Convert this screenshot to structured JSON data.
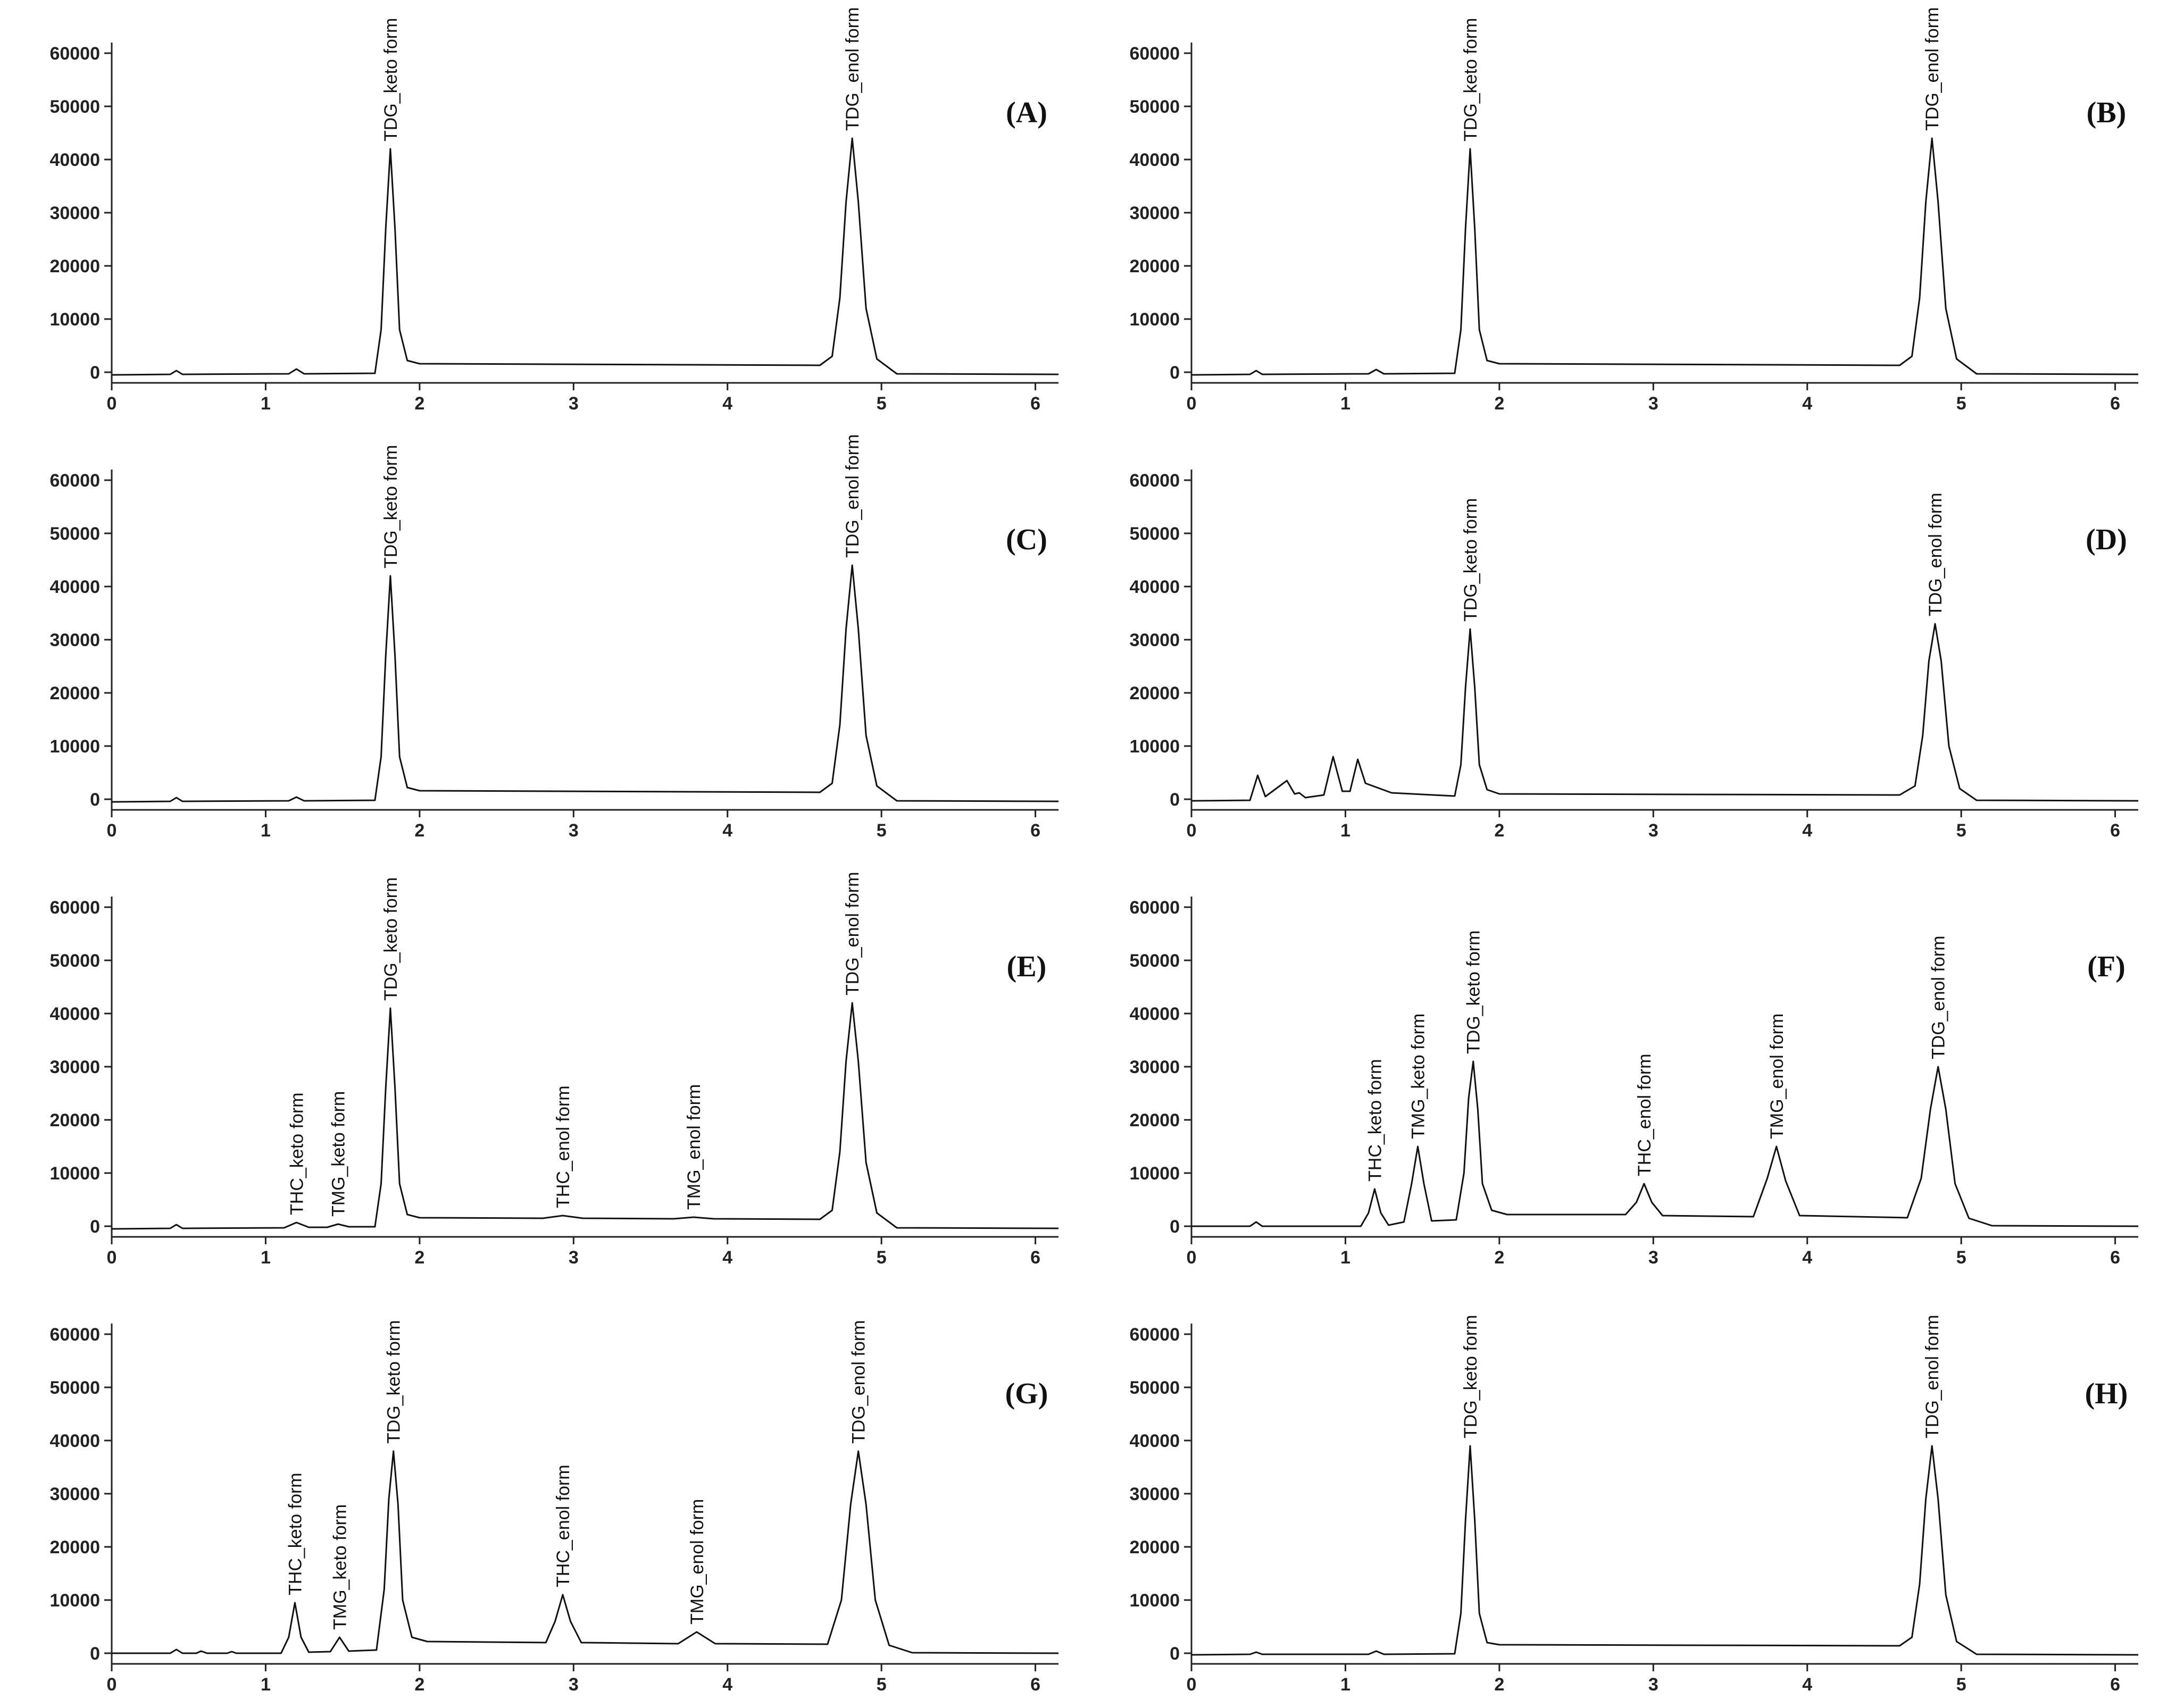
{
  "chart_data": [
    {
      "type": "line",
      "label": "(A)",
      "color": "#111111",
      "xlim": [
        0,
        6.15
      ],
      "ylim": [
        -2000,
        62000
      ],
      "xticks": [
        0,
        1,
        2,
        3,
        4,
        5,
        6
      ],
      "yticks": [
        0,
        10000,
        20000,
        30000,
        40000,
        50000,
        60000
      ],
      "x": [
        0,
        0.38,
        0.42,
        0.46,
        1.15,
        1.2,
        1.25,
        1.71,
        1.75,
        1.78,
        1.81,
        1.84,
        1.87,
        1.92,
        2.0,
        4.6,
        4.68,
        4.73,
        4.77,
        4.81,
        4.85,
        4.9,
        4.97,
        5.1,
        6.15
      ],
      "values": [
        -500,
        -400,
        300,
        -400,
        -300,
        600,
        -300,
        -200,
        8000,
        27000,
        42000,
        27000,
        8000,
        2200,
        1600,
        1300,
        3000,
        14000,
        32000,
        44000,
        32000,
        12000,
        2500,
        -300,
        -400
      ],
      "peaks": [
        {
          "label": "TDG_keto form",
          "x": 1.81,
          "y": 42000
        },
        {
          "label": "TDG_enol form",
          "x": 4.81,
          "y": 44000
        }
      ]
    },
    {
      "type": "line",
      "label": "(B)",
      "color": "#111111",
      "xlim": [
        0,
        6.15
      ],
      "ylim": [
        -2000,
        62000
      ],
      "xticks": [
        0,
        1,
        2,
        3,
        4,
        5,
        6
      ],
      "yticks": [
        0,
        10000,
        20000,
        30000,
        40000,
        50000,
        60000
      ],
      "x": [
        0,
        0.38,
        0.42,
        0.46,
        1.15,
        1.2,
        1.25,
        1.71,
        1.75,
        1.78,
        1.81,
        1.84,
        1.87,
        1.92,
        2.0,
        4.6,
        4.68,
        4.73,
        4.77,
        4.81,
        4.85,
        4.9,
        4.97,
        5.1,
        6.15
      ],
      "values": [
        -500,
        -400,
        300,
        -400,
        -300,
        500,
        -300,
        -200,
        8000,
        27000,
        42000,
        27000,
        8000,
        2200,
        1600,
        1300,
        3000,
        14000,
        32000,
        44000,
        32000,
        12000,
        2500,
        -300,
        -400
      ],
      "peaks": [
        {
          "label": "TDG_keto form",
          "x": 1.81,
          "y": 42000
        },
        {
          "label": "TDG_enol form",
          "x": 4.81,
          "y": 44000
        }
      ]
    },
    {
      "type": "line",
      "label": "(C)",
      "color": "#111111",
      "xlim": [
        0,
        6.15
      ],
      "ylim": [
        -2000,
        62000
      ],
      "xticks": [
        0,
        1,
        2,
        3,
        4,
        5,
        6
      ],
      "yticks": [
        0,
        10000,
        20000,
        30000,
        40000,
        50000,
        60000
      ],
      "x": [
        0,
        0.38,
        0.42,
        0.46,
        1.15,
        1.2,
        1.25,
        1.71,
        1.75,
        1.78,
        1.81,
        1.84,
        1.87,
        1.92,
        2.0,
        4.6,
        4.68,
        4.73,
        4.77,
        4.81,
        4.85,
        4.9,
        4.97,
        5.1,
        6.15
      ],
      "values": [
        -500,
        -400,
        300,
        -400,
        -300,
        400,
        -300,
        -200,
        8000,
        27000,
        42000,
        27000,
        8000,
        2200,
        1600,
        1300,
        3000,
        14000,
        32000,
        44000,
        32000,
        12000,
        2500,
        -300,
        -400
      ],
      "peaks": [
        {
          "label": "TDG_keto form",
          "x": 1.81,
          "y": 42000
        },
        {
          "label": "TDG_enol form",
          "x": 4.81,
          "y": 44000
        }
      ]
    },
    {
      "type": "line",
      "label": "(D)",
      "color": "#111111",
      "xlim": [
        0,
        6.15
      ],
      "ylim": [
        -2000,
        62000
      ],
      "xticks": [
        0,
        1,
        2,
        3,
        4,
        5,
        6
      ],
      "yticks": [
        0,
        10000,
        20000,
        30000,
        40000,
        50000,
        60000
      ],
      "x": [
        0,
        0.38,
        0.43,
        0.48,
        0.55,
        0.62,
        0.67,
        0.7,
        0.74,
        0.86,
        0.92,
        0.98,
        1.03,
        1.08,
        1.13,
        1.3,
        1.71,
        1.75,
        1.78,
        1.81,
        1.84,
        1.87,
        1.92,
        2.0,
        4.6,
        4.7,
        4.75,
        4.79,
        4.83,
        4.87,
        4.92,
        4.99,
        5.1,
        6.15
      ],
      "values": [
        -300,
        -200,
        4500,
        500,
        2000,
        3500,
        1000,
        1200,
        300,
        800,
        8000,
        1500,
        1500,
        7500,
        3000,
        1200,
        600,
        6500,
        21000,
        32000,
        21000,
        6500,
        1800,
        1000,
        800,
        2500,
        12000,
        26000,
        33000,
        26000,
        10000,
        2000,
        -200,
        -300
      ],
      "peaks": [
        {
          "label": "TDG_keto form",
          "x": 1.81,
          "y": 32000
        },
        {
          "label": "TDG_enol form",
          "x": 4.83,
          "y": 33000
        }
      ]
    },
    {
      "type": "line",
      "label": "(E)",
      "color": "#111111",
      "xlim": [
        0,
        6.15
      ],
      "ylim": [
        -2000,
        62000
      ],
      "xticks": [
        0,
        1,
        2,
        3,
        4,
        5,
        6
      ],
      "yticks": [
        0,
        10000,
        20000,
        30000,
        40000,
        50000,
        60000
      ],
      "x": [
        0,
        0.38,
        0.42,
        0.46,
        1.12,
        1.2,
        1.28,
        1.4,
        1.47,
        1.54,
        1.71,
        1.75,
        1.78,
        1.81,
        1.84,
        1.87,
        1.92,
        2.0,
        2.8,
        2.93,
        3.06,
        3.65,
        3.78,
        3.91,
        4.6,
        4.68,
        4.73,
        4.77,
        4.81,
        4.85,
        4.9,
        4.97,
        5.1,
        6.15
      ],
      "values": [
        -500,
        -400,
        300,
        -400,
        -300,
        700,
        -200,
        -200,
        400,
        -100,
        -100,
        8000,
        26000,
        41000,
        26000,
        8000,
        2200,
        1600,
        1500,
        2000,
        1500,
        1400,
        1700,
        1400,
        1300,
        3000,
        14000,
        31000,
        42000,
        31000,
        12000,
        2500,
        -300,
        -400
      ],
      "peaks": [
        {
          "label": "THC_keto form",
          "x": 1.2,
          "y": 700
        },
        {
          "label": "TMG_keto form",
          "x": 1.47,
          "y": 400
        },
        {
          "label": "TDG_keto form",
          "x": 1.81,
          "y": 41000
        },
        {
          "label": "THC_enol form",
          "x": 2.93,
          "y": 2000
        },
        {
          "label": "TMG_enol form",
          "x": 3.78,
          "y": 1700
        },
        {
          "label": "TDG_enol form",
          "x": 4.81,
          "y": 42000
        }
      ]
    },
    {
      "type": "line",
      "label": "(F)",
      "color": "#111111",
      "xlim": [
        0,
        6.15
      ],
      "ylim": [
        -2000,
        62000
      ],
      "xticks": [
        0,
        1,
        2,
        3,
        4,
        5,
        6
      ],
      "yticks": [
        0,
        10000,
        20000,
        30000,
        40000,
        50000,
        60000
      ],
      "x": [
        0,
        0.38,
        0.42,
        0.46,
        1.1,
        1.15,
        1.19,
        1.23,
        1.28,
        1.38,
        1.43,
        1.47,
        1.51,
        1.56,
        1.72,
        1.77,
        1.8,
        1.83,
        1.86,
        1.89,
        1.95,
        2.05,
        2.82,
        2.89,
        2.94,
        2.99,
        3.06,
        3.65,
        3.74,
        3.8,
        3.86,
        3.95,
        4.65,
        4.74,
        4.8,
        4.85,
        4.9,
        4.96,
        5.05,
        5.2,
        6.15
      ],
      "values": [
        0,
        0,
        800,
        0,
        0,
        2500,
        7000,
        2500,
        200,
        800,
        8000,
        15000,
        8000,
        1000,
        1200,
        10000,
        24000,
        31000,
        22000,
        8000,
        3000,
        2200,
        2200,
        4500,
        8000,
        4500,
        2000,
        1800,
        9000,
        15000,
        8500,
        2000,
        1600,
        9000,
        22000,
        30000,
        22000,
        8000,
        1500,
        100,
        0
      ],
      "peaks": [
        {
          "label": "THC_keto form",
          "x": 1.19,
          "y": 7000
        },
        {
          "label": "TMG_keto form",
          "x": 1.47,
          "y": 15000
        },
        {
          "label": "TDG_keto form",
          "x": 1.83,
          "y": 31000
        },
        {
          "label": "THC_enol form",
          "x": 2.94,
          "y": 8000
        },
        {
          "label": "TMG_enol form",
          "x": 3.8,
          "y": 15000
        },
        {
          "label": "TDG_enol form",
          "x": 4.85,
          "y": 30000
        }
      ]
    },
    {
      "type": "line",
      "label": "(G)",
      "color": "#111111",
      "xlim": [
        0,
        6.15
      ],
      "ylim": [
        -2000,
        62000
      ],
      "xticks": [
        0,
        1,
        2,
        3,
        4,
        5,
        6
      ],
      "yticks": [
        0,
        10000,
        20000,
        30000,
        40000,
        50000,
        60000
      ],
      "x": [
        0,
        0.38,
        0.42,
        0.46,
        0.55,
        0.58,
        0.62,
        0.75,
        0.78,
        0.81,
        1.1,
        1.15,
        1.19,
        1.23,
        1.28,
        1.42,
        1.48,
        1.54,
        1.72,
        1.77,
        1.8,
        1.83,
        1.86,
        1.89,
        1.95,
        2.05,
        2.82,
        2.88,
        2.93,
        2.98,
        3.05,
        3.68,
        3.8,
        3.92,
        4.65,
        4.74,
        4.8,
        4.85,
        4.9,
        4.96,
        5.05,
        5.2,
        6.15
      ],
      "values": [
        0,
        0,
        700,
        0,
        0,
        400,
        0,
        0,
        300,
        0,
        0,
        3000,
        9500,
        3000,
        200,
        300,
        3000,
        400,
        600,
        12000,
        29000,
        38000,
        28000,
        10000,
        3000,
        2200,
        2000,
        6000,
        11000,
        6000,
        2000,
        1800,
        4000,
        1800,
        1700,
        10000,
        28000,
        38000,
        28000,
        10000,
        1500,
        100,
        0
      ],
      "peaks": [
        {
          "label": "THC_keto form",
          "x": 1.19,
          "y": 9500
        },
        {
          "label": "TMG_keto form",
          "x": 1.48,
          "y": 3000
        },
        {
          "label": "TDG_keto form",
          "x": 1.83,
          "y": 38000
        },
        {
          "label": "THC_enol form",
          "x": 2.93,
          "y": 11000
        },
        {
          "label": "TMG_enol form",
          "x": 3.8,
          "y": 4000
        },
        {
          "label": "TDG_enol form",
          "x": 4.85,
          "y": 38000
        }
      ]
    },
    {
      "type": "line",
      "label": "(H)",
      "color": "#111111",
      "xlim": [
        0,
        6.15
      ],
      "ylim": [
        -2000,
        62000
      ],
      "xticks": [
        0,
        1,
        2,
        3,
        4,
        5,
        6
      ],
      "yticks": [
        0,
        10000,
        20000,
        30000,
        40000,
        50000,
        60000
      ],
      "x": [
        0,
        0.38,
        0.42,
        0.46,
        1.15,
        1.2,
        1.25,
        1.71,
        1.75,
        1.78,
        1.81,
        1.84,
        1.87,
        1.92,
        2.0,
        4.6,
        4.68,
        4.73,
        4.77,
        4.81,
        4.85,
        4.9,
        4.97,
        5.1,
        6.15
      ],
      "values": [
        -300,
        -200,
        200,
        -200,
        -200,
        400,
        -200,
        -100,
        7500,
        25000,
        39000,
        25000,
        7500,
        2000,
        1600,
        1400,
        3000,
        13000,
        29000,
        39000,
        29000,
        11000,
        2200,
        -200,
        -300
      ],
      "peaks": [
        {
          "label": "TDG_keto form",
          "x": 1.81,
          "y": 39000
        },
        {
          "label": "TDG_enol form",
          "x": 4.81,
          "y": 39000
        }
      ]
    }
  ]
}
